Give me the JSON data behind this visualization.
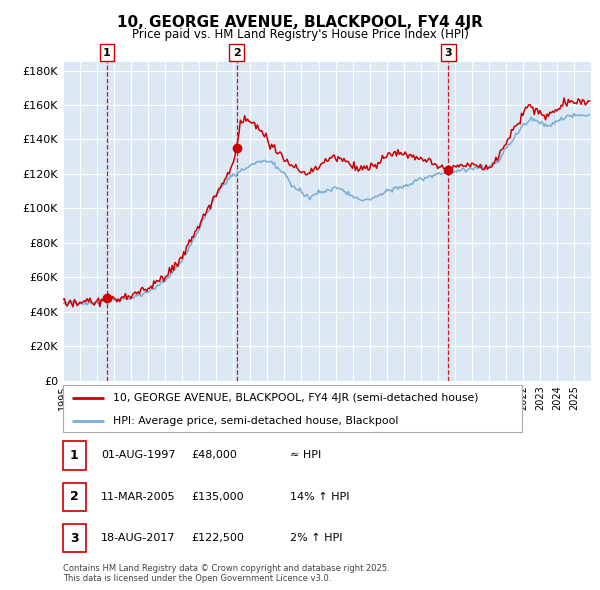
{
  "title": "10, GEORGE AVENUE, BLACKPOOL, FY4 4JR",
  "subtitle": "Price paid vs. HM Land Registry's House Price Index (HPI)",
  "sale_dates": [
    "1997-08-01",
    "2005-03-11",
    "2017-08-18"
  ],
  "sale_prices": [
    48000,
    135000,
    122500
  ],
  "sale_labels": [
    "1",
    "2",
    "3"
  ],
  "sale_pct": [
    "≈ HPI",
    "14% ↑ HPI",
    "2% ↑ HPI"
  ],
  "sale_date_strs": [
    "01-AUG-1997",
    "11-MAR-2005",
    "18-AUG-2017"
  ],
  "legend_line1": "10, GEORGE AVENUE, BLACKPOOL, FY4 4JR (semi-detached house)",
  "legend_line2": "HPI: Average price, semi-detached house, Blackpool",
  "footer": "Contains HM Land Registry data © Crown copyright and database right 2025.\nThis data is licensed under the Open Government Licence v3.0.",
  "line_color": "#cc0000",
  "hpi_color": "#7aadd4",
  "background_color": "#dce9f5",
  "ylim": [
    0,
    185000
  ],
  "yticks": [
    0,
    20000,
    40000,
    60000,
    80000,
    100000,
    120000,
    140000,
    160000,
    180000
  ],
  "grid_color": "#ffffff",
  "vline_color": "#cc0000"
}
